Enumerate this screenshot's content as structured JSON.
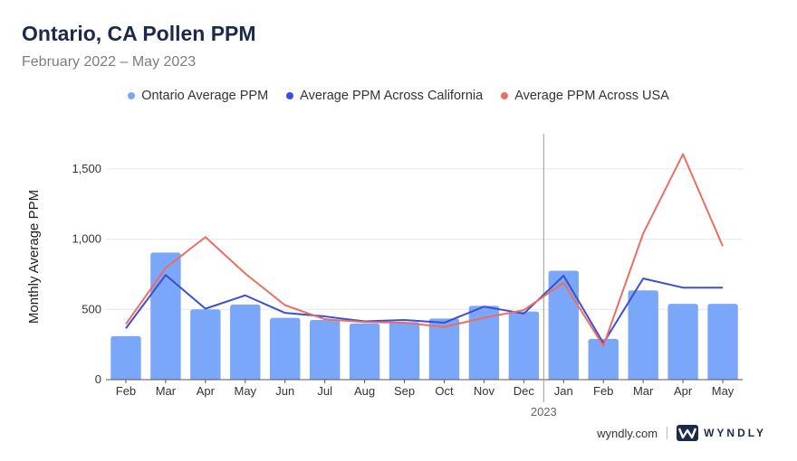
{
  "title": "Ontario, CA Pollen PPM",
  "subtitle": "February 2022 – May 2023",
  "footer": {
    "url": "wyndly.com",
    "brand": "WYNDLY",
    "logo_icon": "wyndly-w-logo-icon"
  },
  "colors": {
    "ontario": "#7aa7f9",
    "california": "#3a4fd1",
    "usa": "#ec6e62",
    "grid": "#e6e6e6",
    "axis": "#555555"
  },
  "chart_data": {
    "type": "bar",
    "title": "Ontario, CA Pollen PPM",
    "subtitle": "February 2022 – May 2023",
    "xlabel": "",
    "ylabel": "Monthly Average PPM",
    "ylim": [
      0,
      1750
    ],
    "yticks": [
      0,
      500,
      1000,
      1500
    ],
    "ytick_labels": [
      "0",
      "500",
      "1,000",
      "1,500"
    ],
    "categories": [
      "Feb",
      "Mar",
      "Apr",
      "May",
      "Jun",
      "Jul",
      "Aug",
      "Sep",
      "Oct",
      "Nov",
      "Dec",
      "Jan",
      "Feb",
      "Mar",
      "Apr",
      "May"
    ],
    "year_marker": {
      "label": "2023",
      "before_index": 11
    },
    "grid": true,
    "legend_position": "top-center",
    "series": [
      {
        "name": "Ontario Average PPM",
        "type": "bar",
        "color": "#7aa7f9",
        "values": [
          310,
          905,
          500,
          535,
          440,
          425,
          400,
          410,
          435,
          525,
          485,
          775,
          290,
          635,
          540,
          540
        ]
      },
      {
        "name": "Average PPM Across California",
        "type": "line",
        "color": "#3a4fd1",
        "values": [
          365,
          745,
          505,
          600,
          475,
          450,
          415,
          425,
          405,
          520,
          470,
          740,
          260,
          720,
          655,
          655
        ]
      },
      {
        "name": "Average PPM Across USA",
        "type": "line",
        "color": "#ec6e62",
        "values": [
          395,
          795,
          1015,
          755,
          530,
          430,
          410,
          405,
          375,
          440,
          495,
          690,
          240,
          1040,
          1605,
          950
        ]
      }
    ]
  }
}
